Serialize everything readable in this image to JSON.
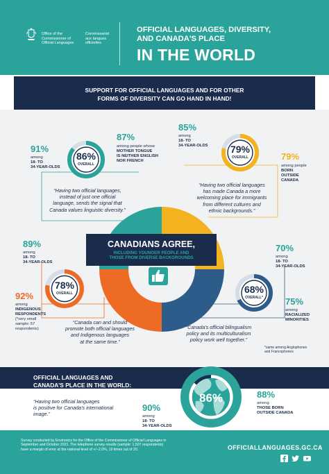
{
  "header": {
    "org_en": "Office of the\nCommissioner of\nOfficial Languages",
    "org_fr": "Commissariat\naux langues\nofficielles",
    "title_line": "OFFICIAL LANGUAGES, DIVERSITY,\nAND CANADA'S PLACE",
    "title_big": "IN THE WORLD"
  },
  "banner": {
    "text": "SUPPORT FOR OFFICIAL LANGUAGES AND FOR OTHER\nFORMS OF DIVERSITY CAN GO HAND IN HAND!"
  },
  "center": {
    "title": "CANADIANS AGREE,",
    "subtitle": "INCLUDING YOUNGER PEOPLE AND\nTHOSE FROM DIVERSE BACKGROUNDS"
  },
  "groups": {
    "g1": {
      "overall": "86%",
      "overall_label": "OVERALL",
      "overall_value": 86,
      "stat_a_pct": "91%",
      "stat_a_desc_pre": "among",
      "stat_a_desc": "18- TO\n34-YEAR-OLDS",
      "stat_b_pct": "87%",
      "stat_b_desc_pre": "among people whose",
      "stat_b_desc": "MOTHER TONGUE\nIS NEITHER ENGLISH\nNOR FRENCH",
      "quote": "“Having two official languages,\ninstead of just one official\nlanguage, sends the signal that\nCanada values linguistic diversity.”"
    },
    "g2": {
      "overall": "79%",
      "overall_label": "OVERALL",
      "overall_value": 79,
      "stat_a_pct": "85%",
      "stat_a_desc_pre": "among",
      "stat_a_desc": "18- TO\n34-YEAR-OLDS",
      "stat_b_pct": "79%",
      "stat_b_desc_pre": "among people",
      "stat_b_desc": "BORN\nOUTSIDE\nCANADA",
      "quote": "“Having two official languages\nhas made Canada a more\nwelcoming place for immigrants\nfrom different cultures and\nethnic backgrounds.”"
    },
    "g3": {
      "overall": "78%",
      "overall_label": "OVERALL",
      "overall_value": 78,
      "stat_a_pct": "89%",
      "stat_a_desc_pre": "among",
      "stat_a_desc": "18- TO\n34-YEAR-OLDS",
      "stat_b_pct": "92%",
      "stat_b_desc_pre": "among",
      "stat_b_desc": "INDIGENOUS\nRESPONDENTS",
      "stat_b_note": "(*very small\nsample: 57\nrespondents)",
      "quote": "“Canada can and should\npromote both official languages\nand Indigenous languages\nat the same time.”"
    },
    "g4": {
      "overall": "68%",
      "overall_label": "OVERALL*",
      "overall_value": 68,
      "stat_a_pct": "70%",
      "stat_a_desc_pre": "among",
      "stat_a_desc": "18- TO\n34-YEAR-OLDS",
      "stat_b_pct": "75%",
      "stat_b_desc_pre": "among",
      "stat_b_desc": "RACIALIZED\nMINORITIES",
      "quote": "“Canada's official bilingualism\npolicy and its multiculturalism\npolicy work well together.”",
      "footnote": "*same among Anglophones\nand Francophones"
    }
  },
  "world": {
    "title": "OFFICIAL LANGUAGES AND\nCANADA'S PLACE IN THE WORLD:",
    "quote": "“Having two official languages\nis positive for Canada's international\nimage.”",
    "overall": "86%",
    "overall_value": 86,
    "stat_a_pct": "90%",
    "stat_a_desc_pre": "among",
    "stat_a_desc": "18- TO\n34-YEAR-OLDS",
    "stat_b_pct": "88%",
    "stat_b_desc_pre": "among",
    "stat_b_desc": "THOSE BORN\nOUTSIDE CANADA"
  },
  "footer": {
    "survey": "Survey conducted by Environics for the Office of the Commissioner of Official Languages in\nSeptember and October 2021. The telephone survey results (sample: 1,507 respondents)\nhave a margin of error at the national level of +/−2.0%, 19 times out of 20.",
    "url": "OFFICIALLANGUAGES.GC.CA",
    "social": [
      "facebook-icon",
      "twitter-icon",
      "youtube-icon"
    ]
  },
  "colors": {
    "teal": "#2aa39a",
    "navy": "#1a2b4c",
    "orange": "#ee6b25",
    "yellow": "#f3b21f",
    "blue": "#2e5c8a"
  }
}
